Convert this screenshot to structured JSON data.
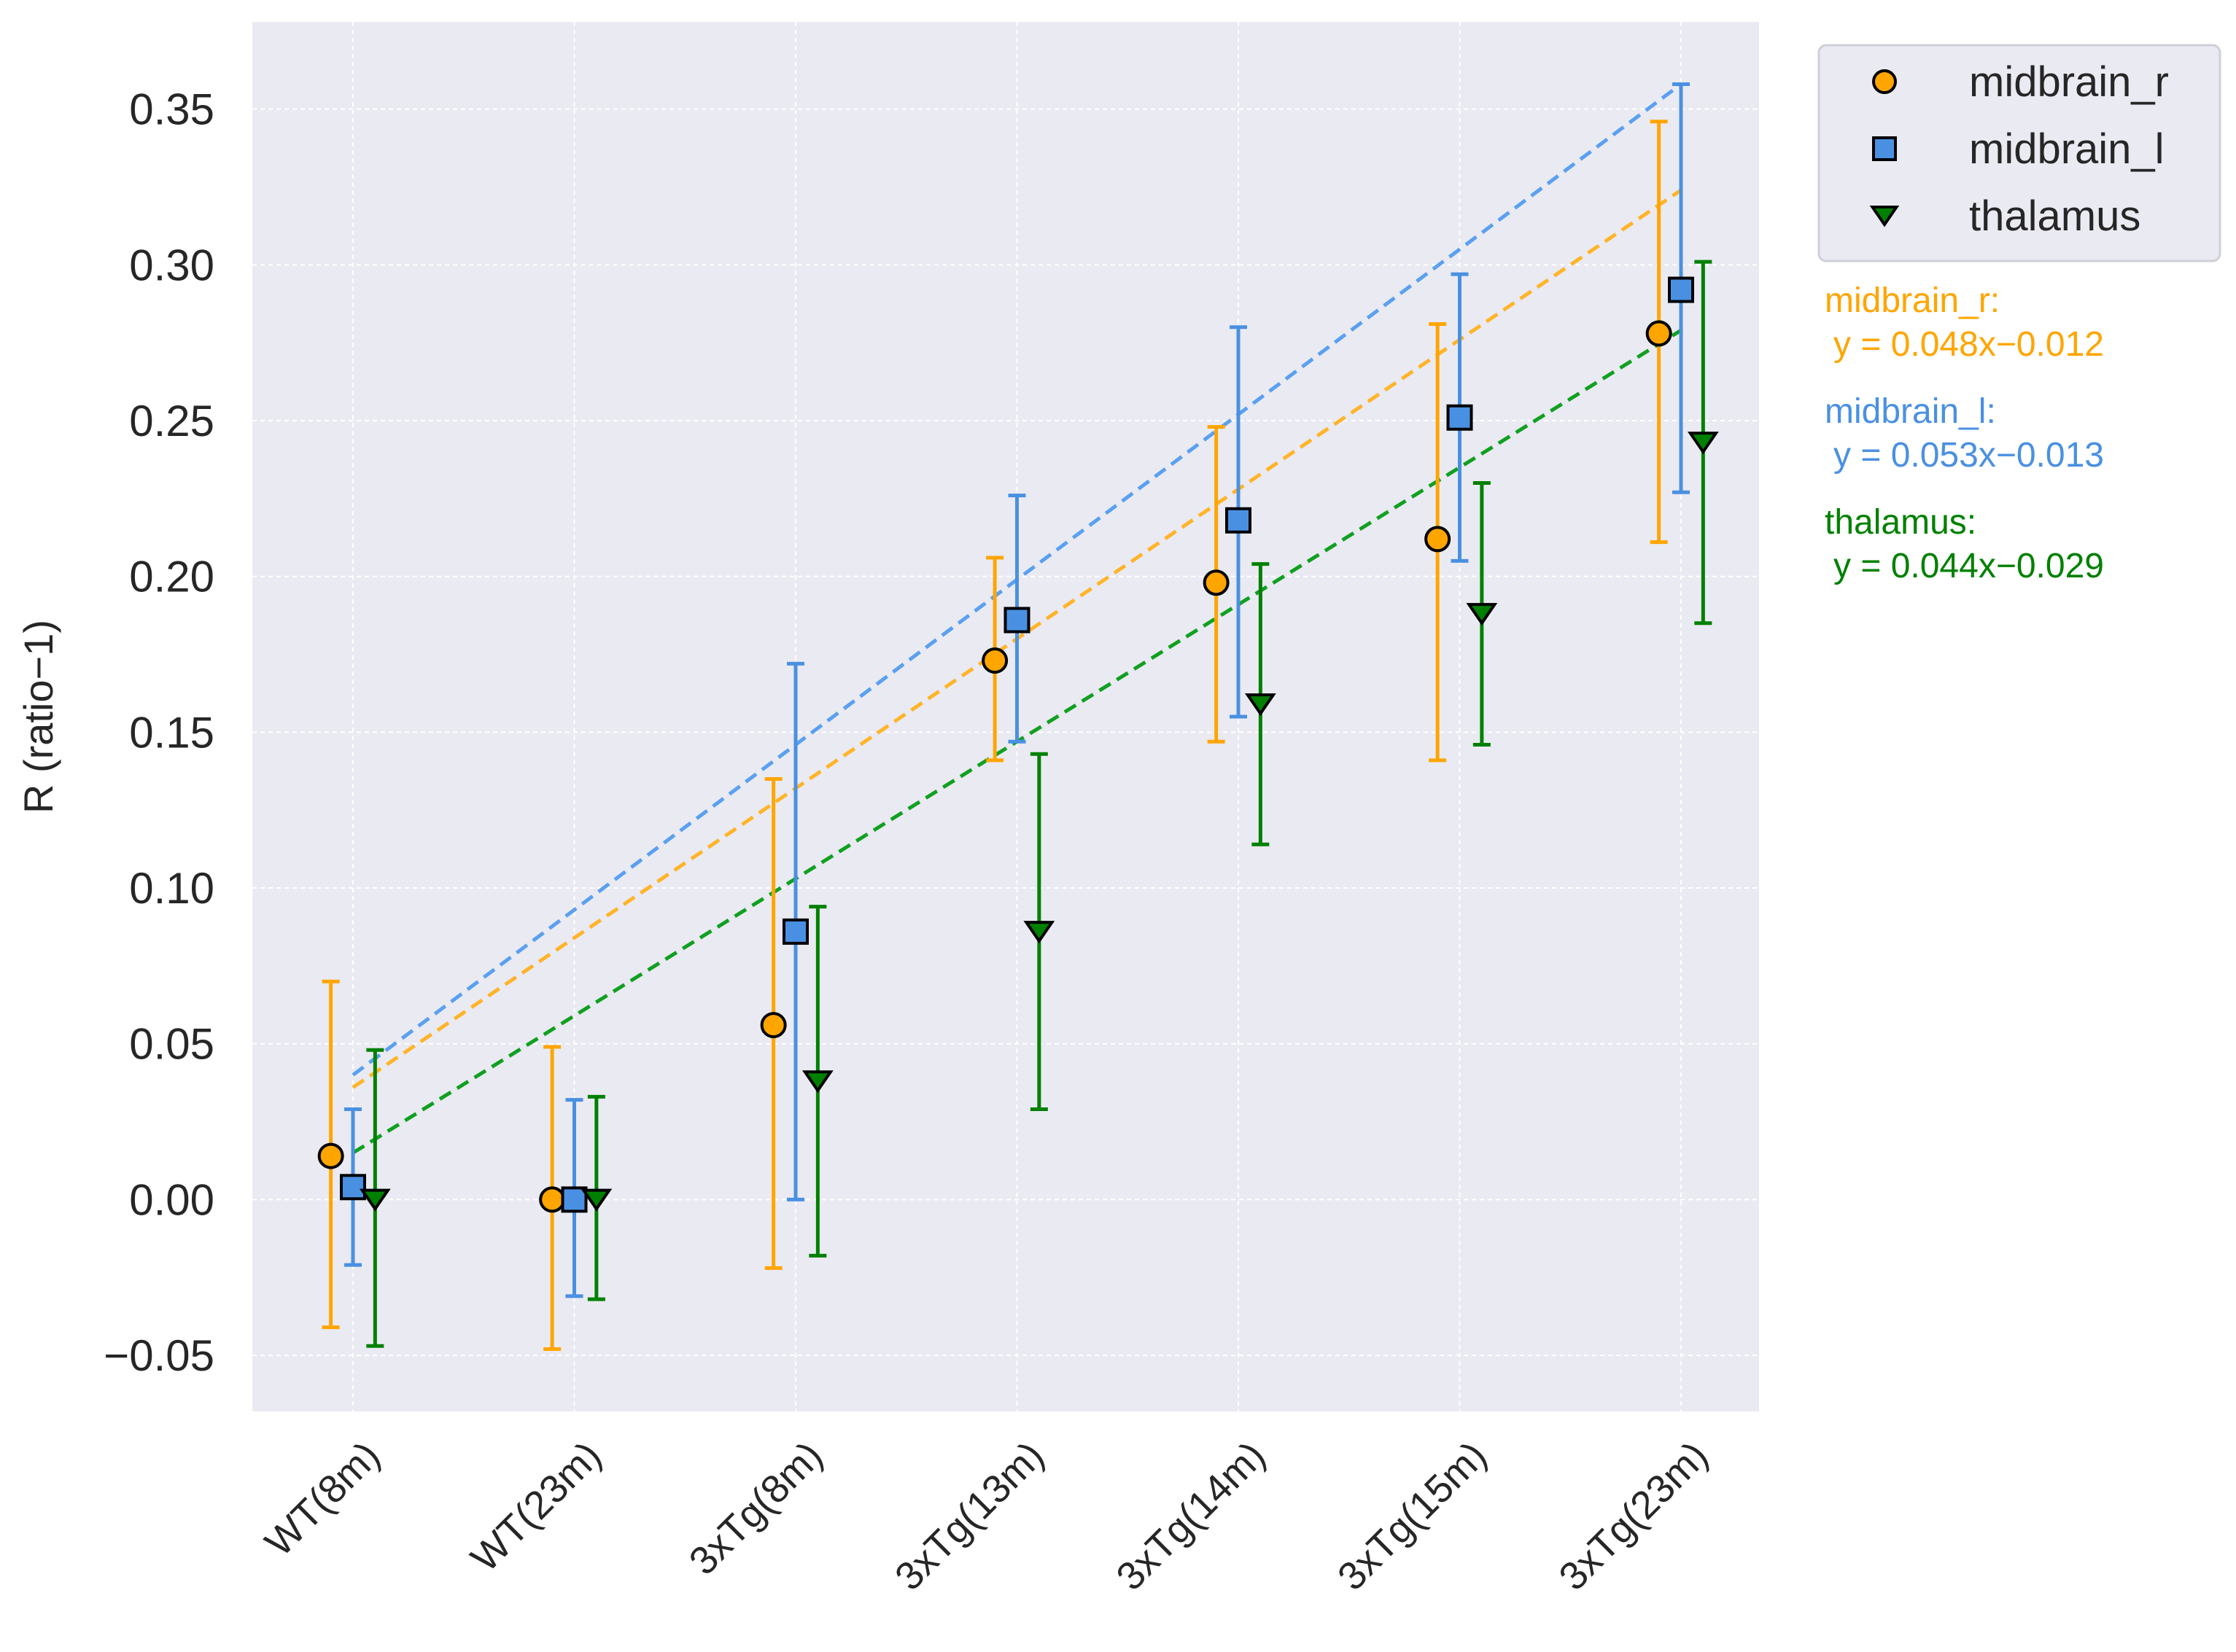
{
  "chart_data": {
    "type": "scatter",
    "title": "",
    "xlabel": "",
    "ylabel": "R (ratio−1)",
    "ylim": [
      -0.068,
      0.378
    ],
    "yticks": [
      -0.05,
      0.0,
      0.05,
      0.1,
      0.15,
      0.2,
      0.25,
      0.3,
      0.35
    ],
    "ytick_labels": [
      "−0.05",
      "0.00",
      "0.05",
      "0.10",
      "0.15",
      "0.20",
      "0.25",
      "0.30",
      "0.35"
    ],
    "categories": [
      "WT(8m)",
      "WT(23m)",
      "3xTg(8m)",
      "3xTg(13m)",
      "3xTg(14m)",
      "3xTg(15m)",
      "3xTg(23m)"
    ],
    "grid": true,
    "legend_position": "outside-top-right",
    "series": [
      {
        "name": "midbrain_r",
        "color": "#ffa500",
        "line_color": "#ffb429",
        "marker": "circle",
        "offset": -0.1,
        "values": [
          0.014,
          0.0,
          0.056,
          0.173,
          0.198,
          0.212,
          0.278
        ],
        "err_low": [
          -0.041,
          -0.048,
          -0.022,
          0.141,
          0.147,
          0.141,
          0.211
        ],
        "err_high": [
          0.07,
          0.049,
          0.135,
          0.206,
          0.248,
          0.281,
          0.346
        ],
        "fit": {
          "slope": 0.048,
          "intercept": -0.012
        },
        "equation_name": "midbrain_r:",
        "equation": "y = 0.048x−0.012"
      },
      {
        "name": "midbrain_l",
        "color": "#4a90e2",
        "line_color": "#5aa0f0",
        "marker": "square",
        "offset": 0.0,
        "values": [
          0.004,
          0.0,
          0.086,
          0.186,
          0.218,
          0.251,
          0.292
        ],
        "err_low": [
          -0.021,
          -0.031,
          0.0,
          0.147,
          0.155,
          0.205,
          0.227
        ],
        "err_high": [
          0.029,
          0.032,
          0.172,
          0.226,
          0.28,
          0.297,
          0.358
        ],
        "fit": {
          "slope": 0.053,
          "intercept": -0.013
        },
        "equation_name": "midbrain_l:",
        "equation": "y = 0.053x−0.013"
      },
      {
        "name": "thalamus",
        "color": "#008000",
        "line_color": "#10a020",
        "marker": "triangle-down",
        "offset": 0.1,
        "values": [
          0.0,
          0.0,
          0.038,
          0.086,
          0.159,
          0.188,
          0.243
        ],
        "err_low": [
          -0.047,
          -0.032,
          -0.018,
          0.029,
          0.114,
          0.146,
          0.185
        ],
        "err_high": [
          0.048,
          0.033,
          0.094,
          0.143,
          0.204,
          0.23,
          0.301
        ],
        "fit": {
          "slope": 0.044,
          "intercept": -0.029
        },
        "equation_name": "thalamus:",
        "equation": "y = 0.044x−0.029"
      }
    ]
  }
}
